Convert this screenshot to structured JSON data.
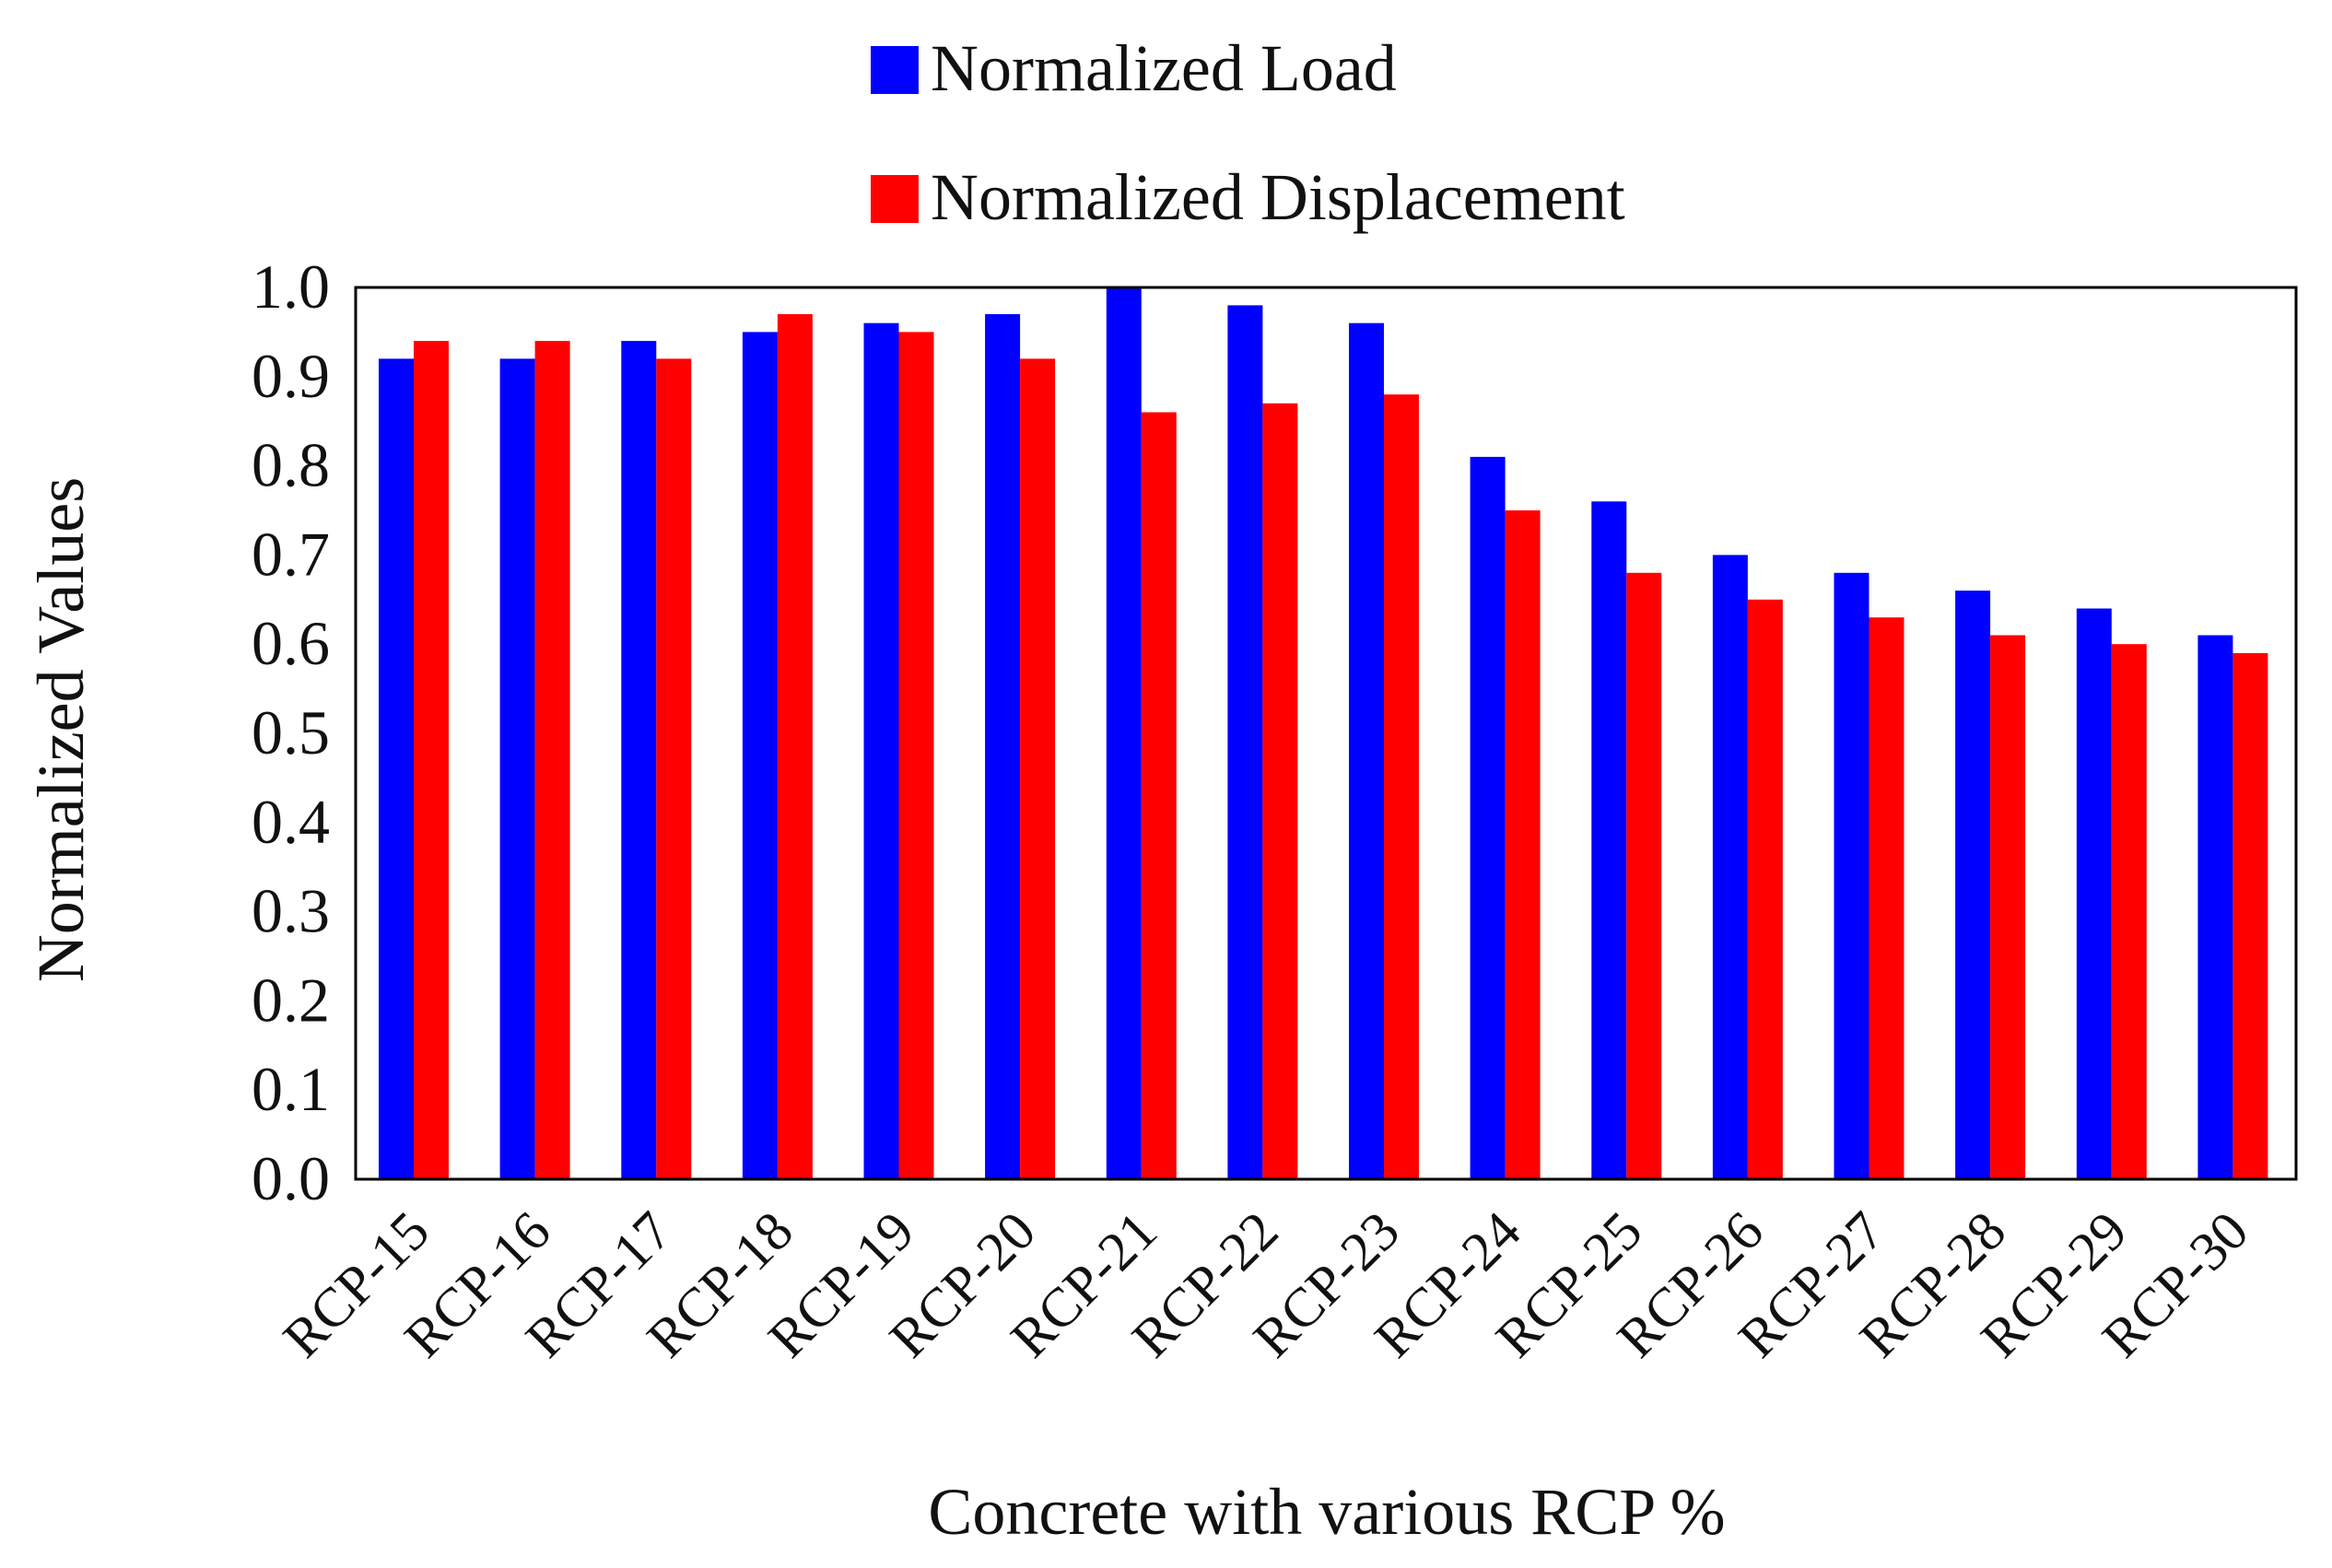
{
  "chart_data": {
    "type": "bar",
    "title": "",
    "xlabel": "Concrete with various RCP %",
    "ylabel": "Normalized Values",
    "ylim": [
      0,
      1.0
    ],
    "yticks": [
      "0.0",
      "0.1",
      "0.2",
      "0.3",
      "0.4",
      "0.5",
      "0.6",
      "0.7",
      "0.8",
      "0.9",
      "1.0"
    ],
    "grid": false,
    "legend_position": "top-center",
    "categories": [
      "RCP-15",
      "RCP-16",
      "RCP-17",
      "RCP-18",
      "RCP-19",
      "RCP-20",
      "RCP-21",
      "RCP-22",
      "RCP-23",
      "RCP-24",
      "RCP-25",
      "RCP-26",
      "RCP-27",
      "RCP-28",
      "RCP-29",
      "RCP-30"
    ],
    "series": [
      {
        "name": "Normalized Load",
        "color": "#0000ff",
        "values": [
          0.92,
          0.92,
          0.94,
          0.95,
          0.96,
          0.97,
          1.0,
          0.98,
          0.96,
          0.81,
          0.76,
          0.7,
          0.68,
          0.66,
          0.64,
          0.61
        ]
      },
      {
        "name": "Normalized Displacement",
        "color": "#ff0000",
        "values": [
          0.94,
          0.94,
          0.92,
          0.97,
          0.95,
          0.92,
          0.86,
          0.87,
          0.88,
          0.75,
          0.68,
          0.65,
          0.63,
          0.61,
          0.6,
          0.59
        ]
      }
    ]
  }
}
